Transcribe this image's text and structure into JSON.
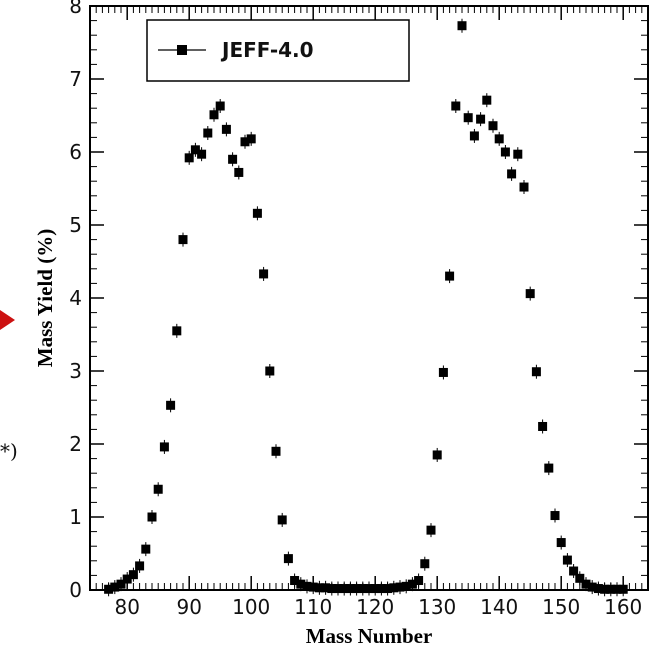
{
  "side_fragment": {
    "text": "*)",
    "arrow_color": "#cc1111"
  },
  "chart_data": {
    "type": "scatter",
    "xlabel": "Mass Number",
    "ylabel": "Mass Yield (%)",
    "xlim": [
      74,
      164
    ],
    "ylim": [
      0,
      8
    ],
    "x_ticks": [
      80,
      90,
      100,
      110,
      120,
      130,
      140,
      150,
      160
    ],
    "y_ticks": [
      0,
      1,
      2,
      3,
      4,
      5,
      6,
      7,
      8
    ],
    "grid": false,
    "legend_position": "top-left",
    "series": [
      {
        "name": "JEFF-4.0",
        "color": "#000000",
        "marker": "square",
        "points": [
          [
            77,
            0.01
          ],
          [
            78,
            0.04
          ],
          [
            79,
            0.08
          ],
          [
            80,
            0.15
          ],
          [
            81,
            0.21
          ],
          [
            82,
            0.33
          ],
          [
            83,
            0.56
          ],
          [
            84,
            1.0
          ],
          [
            85,
            1.38
          ],
          [
            86,
            1.96
          ],
          [
            87,
            2.53
          ],
          [
            88,
            3.55
          ],
          [
            89,
            4.8
          ],
          [
            90,
            5.92
          ],
          [
            91,
            6.03
          ],
          [
            92,
            5.97
          ],
          [
            93,
            6.26
          ],
          [
            94,
            6.51
          ],
          [
            95,
            6.63
          ],
          [
            96,
            6.31
          ],
          [
            97,
            5.9
          ],
          [
            98,
            5.72
          ],
          [
            99,
            6.14
          ],
          [
            100,
            6.18
          ],
          [
            101,
            5.16
          ],
          [
            102,
            4.33
          ],
          [
            103,
            3.0
          ],
          [
            104,
            1.9
          ],
          [
            105,
            0.96
          ],
          [
            106,
            0.43
          ],
          [
            107,
            0.13
          ],
          [
            108,
            0.08
          ],
          [
            109,
            0.05
          ],
          [
            110,
            0.04
          ],
          [
            111,
            0.03
          ],
          [
            112,
            0.03
          ],
          [
            113,
            0.02
          ],
          [
            114,
            0.02
          ],
          [
            115,
            0.02
          ],
          [
            116,
            0.02
          ],
          [
            117,
            0.02
          ],
          [
            118,
            0.02
          ],
          [
            119,
            0.02
          ],
          [
            120,
            0.02
          ],
          [
            121,
            0.02
          ],
          [
            122,
            0.02
          ],
          [
            123,
            0.03
          ],
          [
            124,
            0.04
          ],
          [
            125,
            0.05
          ],
          [
            126,
            0.08
          ],
          [
            127,
            0.13
          ],
          [
            128,
            0.36
          ],
          [
            129,
            0.82
          ],
          [
            130,
            1.85
          ],
          [
            131,
            2.98
          ],
          [
            132,
            4.3
          ],
          [
            133,
            6.63
          ],
          [
            134,
            7.73
          ],
          [
            135,
            6.47
          ],
          [
            136,
            6.22
          ],
          [
            137,
            6.45
          ],
          [
            138,
            6.71
          ],
          [
            139,
            6.36
          ],
          [
            140,
            6.18
          ],
          [
            141,
            6.0
          ],
          [
            142,
            5.7
          ],
          [
            143,
            5.97
          ],
          [
            144,
            5.52
          ],
          [
            145,
            4.06
          ],
          [
            146,
            2.99
          ],
          [
            147,
            2.24
          ],
          [
            148,
            1.67
          ],
          [
            149,
            1.02
          ],
          [
            150,
            0.65
          ],
          [
            151,
            0.41
          ],
          [
            152,
            0.26
          ],
          [
            153,
            0.16
          ],
          [
            154,
            0.08
          ],
          [
            155,
            0.04
          ],
          [
            156,
            0.02
          ],
          [
            157,
            0.01
          ],
          [
            158,
            0.01
          ],
          [
            159,
            0.01
          ],
          [
            160,
            0.01
          ]
        ]
      }
    ]
  }
}
